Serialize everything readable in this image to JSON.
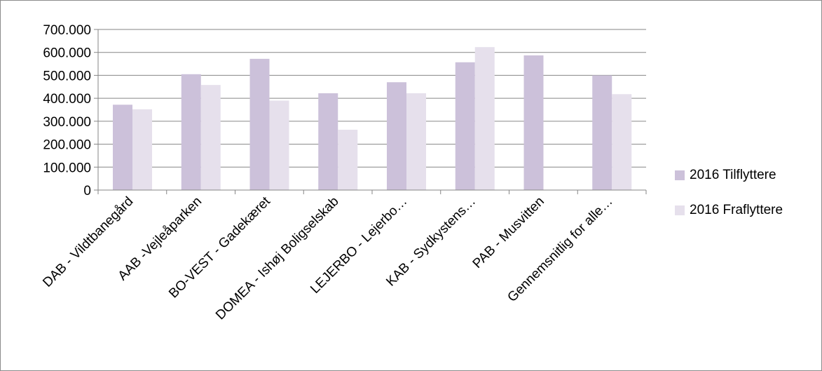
{
  "chart_data": {
    "type": "bar",
    "categories": [
      "DAB - Vildtbanegård",
      "AAB -Vejleåparken",
      "BO-VEST - Gadekæret",
      "DOMEA - Ishøj Boligselskab",
      "LEJERBO - Lejerbo…",
      "KAB - Sydkystens…",
      "PAB - Musvitten",
      "Gennemsnitlig for alle…"
    ],
    "series": [
      {
        "name": "2016 Tilflyttere",
        "color": "#ccc1da",
        "values": [
          372000,
          505000,
          572000,
          422000,
          470000,
          557000,
          587000,
          500000
        ]
      },
      {
        "name": "2016 Fraflyttere",
        "color": "#e6e0ec",
        "values": [
          352000,
          458000,
          390000,
          263000,
          422000,
          623000,
          null,
          418000
        ]
      }
    ],
    "y_ticks": [
      "0",
      "100.000",
      "200.000",
      "300.000",
      "400.000",
      "500.000",
      "600.000",
      "700.000"
    ],
    "ylim": [
      0,
      700000
    ],
    "grid": true,
    "legend_position": "right"
  }
}
